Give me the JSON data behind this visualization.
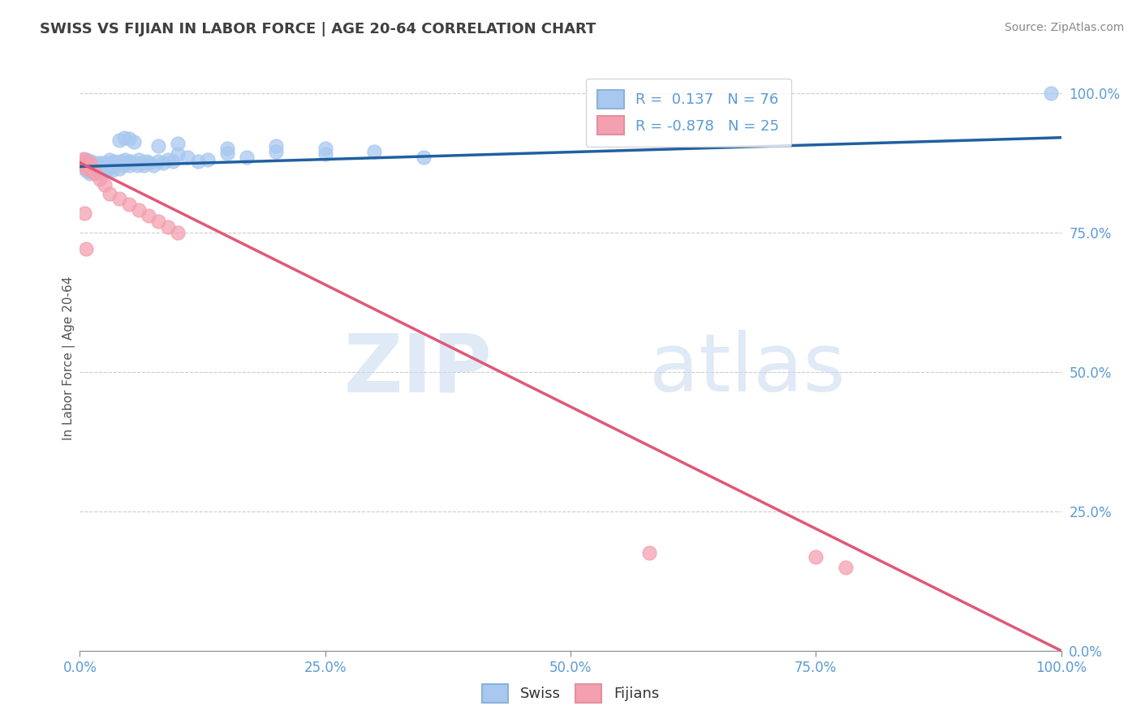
{
  "title": "SWISS VS FIJIAN IN LABOR FORCE | AGE 20-64 CORRELATION CHART",
  "source": "Source: ZipAtlas.com",
  "ylabel": "In Labor Force | Age 20-64",
  "swiss_r": 0.137,
  "swiss_n": 76,
  "fijian_r": -0.878,
  "fijian_n": 25,
  "swiss_color": "#a8c8f0",
  "fijian_color": "#f4a0b0",
  "trend_swiss_color": "#2060a0",
  "trend_fijian_color": "#e05878",
  "background_color": "#ffffff",
  "watermark_zip": "ZIP",
  "watermark_atlas": "atlas",
  "tick_color": "#5b9bd5",
  "title_color": "#404040",
  "swiss_scatter": [
    [
      0.003,
      0.87
    ],
    [
      0.004,
      0.88
    ],
    [
      0.005,
      0.865
    ],
    [
      0.006,
      0.875
    ],
    [
      0.007,
      0.86
    ],
    [
      0.007,
      0.88
    ],
    [
      0.008,
      0.87
    ],
    [
      0.009,
      0.865
    ],
    [
      0.01,
      0.872
    ],
    [
      0.01,
      0.855
    ],
    [
      0.011,
      0.878
    ],
    [
      0.012,
      0.862
    ],
    [
      0.013,
      0.87
    ],
    [
      0.013,
      0.858
    ],
    [
      0.014,
      0.875
    ],
    [
      0.015,
      0.865
    ],
    [
      0.016,
      0.87
    ],
    [
      0.017,
      0.86
    ],
    [
      0.018,
      0.875
    ],
    [
      0.019,
      0.865
    ],
    [
      0.02,
      0.87
    ],
    [
      0.021,
      0.858
    ],
    [
      0.022,
      0.875
    ],
    [
      0.023,
      0.862
    ],
    [
      0.024,
      0.87
    ],
    [
      0.025,
      0.868
    ],
    [
      0.026,
      0.875
    ],
    [
      0.027,
      0.86
    ],
    [
      0.028,
      0.87
    ],
    [
      0.029,
      0.865
    ],
    [
      0.03,
      0.88
    ],
    [
      0.031,
      0.87
    ],
    [
      0.032,
      0.875
    ],
    [
      0.033,
      0.862
    ],
    [
      0.035,
      0.878
    ],
    [
      0.036,
      0.87
    ],
    [
      0.038,
      0.875
    ],
    [
      0.04,
      0.865
    ],
    [
      0.042,
      0.878
    ],
    [
      0.044,
      0.87
    ],
    [
      0.046,
      0.88
    ],
    [
      0.048,
      0.875
    ],
    [
      0.05,
      0.87
    ],
    [
      0.052,
      0.878
    ],
    [
      0.055,
      0.875
    ],
    [
      0.058,
      0.87
    ],
    [
      0.06,
      0.88
    ],
    [
      0.063,
      0.875
    ],
    [
      0.065,
      0.87
    ],
    [
      0.068,
      0.878
    ],
    [
      0.07,
      0.875
    ],
    [
      0.075,
      0.87
    ],
    [
      0.08,
      0.878
    ],
    [
      0.085,
      0.875
    ],
    [
      0.09,
      0.88
    ],
    [
      0.095,
      0.878
    ],
    [
      0.1,
      0.89
    ],
    [
      0.11,
      0.885
    ],
    [
      0.12,
      0.878
    ],
    [
      0.13,
      0.88
    ],
    [
      0.15,
      0.892
    ],
    [
      0.17,
      0.885
    ],
    [
      0.2,
      0.895
    ],
    [
      0.25,
      0.89
    ],
    [
      0.3,
      0.895
    ],
    [
      0.35,
      0.885
    ],
    [
      0.04,
      0.915
    ],
    [
      0.045,
      0.92
    ],
    [
      0.05,
      0.918
    ],
    [
      0.055,
      0.912
    ],
    [
      0.08,
      0.905
    ],
    [
      0.1,
      0.91
    ],
    [
      0.15,
      0.9
    ],
    [
      0.2,
      0.905
    ],
    [
      0.25,
      0.9
    ],
    [
      0.99,
      1.0
    ]
  ],
  "fijian_scatter": [
    [
      0.003,
      0.875
    ],
    [
      0.004,
      0.882
    ],
    [
      0.005,
      0.87
    ],
    [
      0.006,
      0.878
    ],
    [
      0.007,
      0.865
    ],
    [
      0.008,
      0.872
    ],
    [
      0.009,
      0.868
    ],
    [
      0.01,
      0.875
    ],
    [
      0.012,
      0.86
    ],
    [
      0.015,
      0.855
    ],
    [
      0.02,
      0.845
    ],
    [
      0.025,
      0.835
    ],
    [
      0.03,
      0.82
    ],
    [
      0.04,
      0.81
    ],
    [
      0.05,
      0.8
    ],
    [
      0.06,
      0.79
    ],
    [
      0.07,
      0.78
    ],
    [
      0.08,
      0.77
    ],
    [
      0.09,
      0.76
    ],
    [
      0.1,
      0.75
    ],
    [
      0.005,
      0.785
    ],
    [
      0.006,
      0.72
    ],
    [
      0.58,
      0.175
    ],
    [
      0.75,
      0.168
    ],
    [
      0.78,
      0.15
    ]
  ],
  "xlim": [
    0.0,
    1.0
  ],
  "ylim": [
    0.0,
    1.05
  ],
  "right_yticks": [
    0.0,
    0.25,
    0.5,
    0.75,
    1.0
  ],
  "right_yticklabels": [
    "0.0%",
    "25.0%",
    "50.0%",
    "75.0%",
    "100.0%"
  ],
  "xticks": [
    0.0,
    0.25,
    0.5,
    0.75,
    1.0
  ],
  "xticklabels": [
    "0.0%",
    "25.0%",
    "50.0%",
    "75.0%",
    "100.0%"
  ]
}
